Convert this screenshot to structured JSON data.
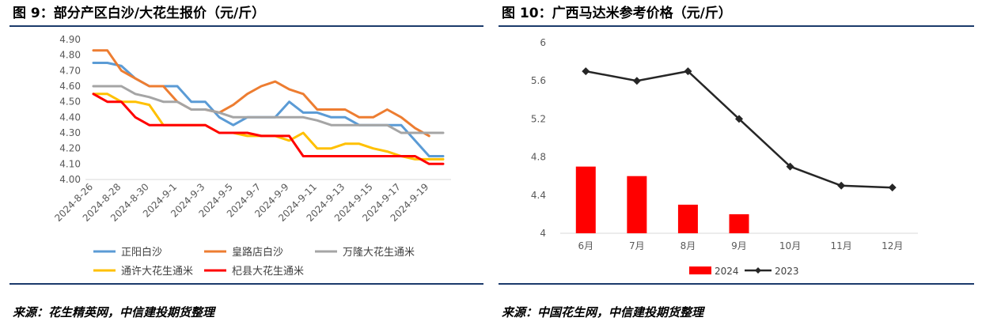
{
  "left": {
    "title": "图 9：部分产区白沙/大花生报价（元/斤）",
    "source": "来源：花生精英网，中信建投期货整理"
  },
  "right": {
    "title": "图 10：广西马达米参考价格（元/斤）",
    "source": "来源：中国花生网，中信建投期货整理"
  },
  "chart_data": [
    {
      "type": "line",
      "xlabel": "",
      "ylabel": "",
      "ylim": [
        4.0,
        4.9
      ],
      "yticks": [
        "4.00",
        "4.10",
        "4.20",
        "4.30",
        "4.40",
        "4.50",
        "4.60",
        "4.70",
        "4.80",
        "4.90"
      ],
      "categories": [
        "2024-8-26",
        "2024-8-27",
        "2024-8-28",
        "2024-8-29",
        "2024-8-30",
        "2024-8-31",
        "2024-9-1",
        "2024-9-2",
        "2024-9-3",
        "2024-9-4",
        "2024-9-5",
        "2024-9-6",
        "2024-9-7",
        "2024-9-8",
        "2024-9-9",
        "2024-9-10",
        "2024-9-11",
        "2024-9-12",
        "2024-9-13",
        "2024-9-14",
        "2024-9-15",
        "2024-9-16",
        "2024-9-17",
        "2024-9-18",
        "2024-9-19",
        "2024-9-20"
      ],
      "tick_labels": [
        "2024-8-26",
        "2024-8-28",
        "2024-8-30",
        "2024-9-1",
        "2024-9-3",
        "2024-9-5",
        "2024-9-7",
        "2024-9-9",
        "2024-9-11",
        "2024-9-13",
        "2024-9-15",
        "2024-9-17",
        "2024-9-19"
      ],
      "legend_position": "bottom",
      "series": [
        {
          "name": "正阳白沙",
          "color": "#5b9bd5",
          "values": [
            4.75,
            4.75,
            4.73,
            4.65,
            4.6,
            4.6,
            4.6,
            4.5,
            4.5,
            4.4,
            4.35,
            4.4,
            4.4,
            4.4,
            4.5,
            4.43,
            4.43,
            4.4,
            4.4,
            4.35,
            4.35,
            4.35,
            4.35,
            4.25,
            4.15,
            4.15
          ]
        },
        {
          "name": "皇路店白沙",
          "color": "#ed7d31",
          "values": [
            4.83,
            4.83,
            4.7,
            4.65,
            4.6,
            4.6,
            4.5,
            4.45,
            4.45,
            4.43,
            4.48,
            4.55,
            4.6,
            4.63,
            4.58,
            4.55,
            4.45,
            4.45,
            4.45,
            4.4,
            4.4,
            4.45,
            4.4,
            4.33,
            4.28,
            null
          ]
        },
        {
          "name": "万隆大花生通米",
          "color": "#a5a5a5",
          "values": [
            4.6,
            4.6,
            4.6,
            4.55,
            4.53,
            4.5,
            4.5,
            4.45,
            4.45,
            4.43,
            4.4,
            4.4,
            4.4,
            4.4,
            4.4,
            4.4,
            4.38,
            4.35,
            4.35,
            4.35,
            4.35,
            4.35,
            4.3,
            4.3,
            4.3,
            4.3
          ]
        },
        {
          "name": "通许大花生通米",
          "color": "#ffc000",
          "values": [
            4.55,
            4.55,
            4.5,
            4.5,
            4.48,
            4.35,
            4.35,
            4.35,
            4.35,
            4.3,
            4.3,
            4.28,
            4.28,
            4.28,
            4.25,
            4.3,
            4.2,
            4.2,
            4.23,
            4.23,
            4.2,
            4.18,
            4.15,
            4.13,
            4.13,
            4.13
          ]
        },
        {
          "name": "杞县大花生通米",
          "color": "#ff0000",
          "values": [
            4.55,
            4.5,
            4.5,
            4.4,
            4.35,
            4.35,
            4.35,
            4.35,
            4.35,
            4.3,
            4.3,
            4.3,
            4.28,
            4.28,
            4.28,
            4.15,
            4.15,
            4.15,
            4.15,
            4.15,
            4.15,
            4.15,
            4.15,
            4.15,
            4.1,
            4.1
          ]
        }
      ]
    },
    {
      "type": "bar+line",
      "xlabel": "",
      "ylabel": "",
      "ylim": [
        4,
        6
      ],
      "yticks": [
        "4",
        "4.4",
        "4.8",
        "5.2",
        "5.6",
        "6"
      ],
      "categories": [
        "6月",
        "7月",
        "8月",
        "9月",
        "10月",
        "11月",
        "12月"
      ],
      "legend_position": "bottom",
      "series": [
        {
          "name": "2024",
          "kind": "bar",
          "color": "#ff0000",
          "values": [
            4.7,
            4.6,
            4.3,
            4.2,
            null,
            null,
            null
          ]
        },
        {
          "name": "2023",
          "kind": "line",
          "color": "#262626",
          "marker": "diamond",
          "values": [
            5.7,
            5.6,
            5.7,
            5.2,
            4.7,
            4.5,
            4.48
          ]
        }
      ]
    }
  ]
}
